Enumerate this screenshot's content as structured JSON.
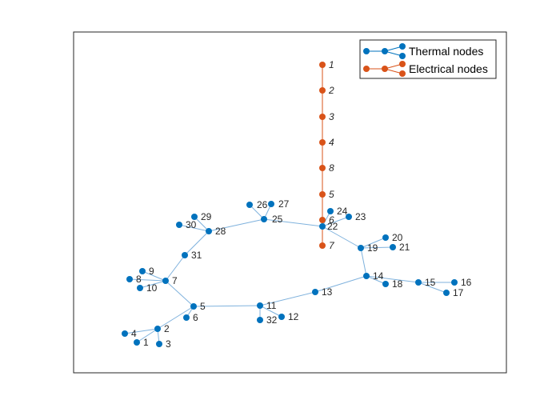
{
  "colors": {
    "thermal": "#0072BD",
    "thermal_edge": "#7FB2DD",
    "electrical": "#D95319",
    "axes_border": "#262626",
    "label": "#262626"
  },
  "legend": {
    "placement": "top-right",
    "thermal_label": "Thermal nodes",
    "electrical_label": "Electrical nodes"
  },
  "chart_data": {
    "type": "graph",
    "grid": false,
    "axis_ticks": false,
    "series": [
      {
        "name": "Thermal nodes",
        "nodes": [
          {
            "id": "1",
            "label": "1"
          },
          {
            "id": "2",
            "label": "2"
          },
          {
            "id": "3",
            "label": "3"
          },
          {
            "id": "4",
            "label": "4"
          },
          {
            "id": "5",
            "label": "5"
          },
          {
            "id": "6",
            "label": "6"
          },
          {
            "id": "7",
            "label": "7"
          },
          {
            "id": "8",
            "label": "8"
          },
          {
            "id": "9",
            "label": "9"
          },
          {
            "id": "10",
            "label": "10"
          },
          {
            "id": "11",
            "label": "11"
          },
          {
            "id": "12",
            "label": "12"
          },
          {
            "id": "13",
            "label": "13"
          },
          {
            "id": "14",
            "label": "14"
          },
          {
            "id": "15",
            "label": "15"
          },
          {
            "id": "16",
            "label": "16"
          },
          {
            "id": "17",
            "label": "17"
          },
          {
            "id": "18",
            "label": "18"
          },
          {
            "id": "19",
            "label": "19"
          },
          {
            "id": "20",
            "label": "20"
          },
          {
            "id": "21",
            "label": "21"
          },
          {
            "id": "22",
            "label": "22"
          },
          {
            "id": "23",
            "label": "23"
          },
          {
            "id": "24",
            "label": "24"
          },
          {
            "id": "25",
            "label": "25"
          },
          {
            "id": "26",
            "label": "26"
          },
          {
            "id": "27",
            "label": "27"
          },
          {
            "id": "28",
            "label": "28"
          },
          {
            "id": "29",
            "label": "29"
          },
          {
            "id": "30",
            "label": "30"
          },
          {
            "id": "31",
            "label": "31"
          },
          {
            "id": "32",
            "label": "32"
          }
        ],
        "edges": [
          [
            "1",
            "2"
          ],
          [
            "2",
            "3"
          ],
          [
            "2",
            "4"
          ],
          [
            "2",
            "5"
          ],
          [
            "5",
            "6"
          ],
          [
            "5",
            "7"
          ],
          [
            "7",
            "8"
          ],
          [
            "7",
            "9"
          ],
          [
            "7",
            "10"
          ],
          [
            "7",
            "31"
          ],
          [
            "31",
            "28"
          ],
          [
            "28",
            "29"
          ],
          [
            "28",
            "30"
          ],
          [
            "28",
            "25"
          ],
          [
            "25",
            "26"
          ],
          [
            "25",
            "27"
          ],
          [
            "25",
            "22"
          ],
          [
            "22",
            "23"
          ],
          [
            "22",
            "24"
          ],
          [
            "22",
            "19"
          ],
          [
            "19",
            "20"
          ],
          [
            "19",
            "21"
          ],
          [
            "19",
            "14"
          ],
          [
            "14",
            "13"
          ],
          [
            "14",
            "18"
          ],
          [
            "14",
            "15"
          ],
          [
            "15",
            "16"
          ],
          [
            "15",
            "17"
          ],
          [
            "13",
            "11"
          ],
          [
            "11",
            "5"
          ],
          [
            "11",
            "12"
          ],
          [
            "11",
            "32"
          ]
        ]
      },
      {
        "name": "Electrical nodes",
        "nodes": [
          {
            "id": "e1",
            "label": "1"
          },
          {
            "id": "e2",
            "label": "2"
          },
          {
            "id": "e3",
            "label": "3"
          },
          {
            "id": "e4",
            "label": "4"
          },
          {
            "id": "e8",
            "label": "8"
          },
          {
            "id": "e5",
            "label": "5"
          },
          {
            "id": "e6",
            "label": "6"
          },
          {
            "id": "e7",
            "label": "7"
          }
        ],
        "edges": [
          [
            "e1",
            "e2"
          ],
          [
            "e2",
            "e3"
          ],
          [
            "e3",
            "e4"
          ],
          [
            "e4",
            "e8"
          ],
          [
            "e8",
            "e5"
          ],
          [
            "e5",
            "e6"
          ],
          [
            "e6",
            "e7"
          ]
        ]
      }
    ]
  }
}
